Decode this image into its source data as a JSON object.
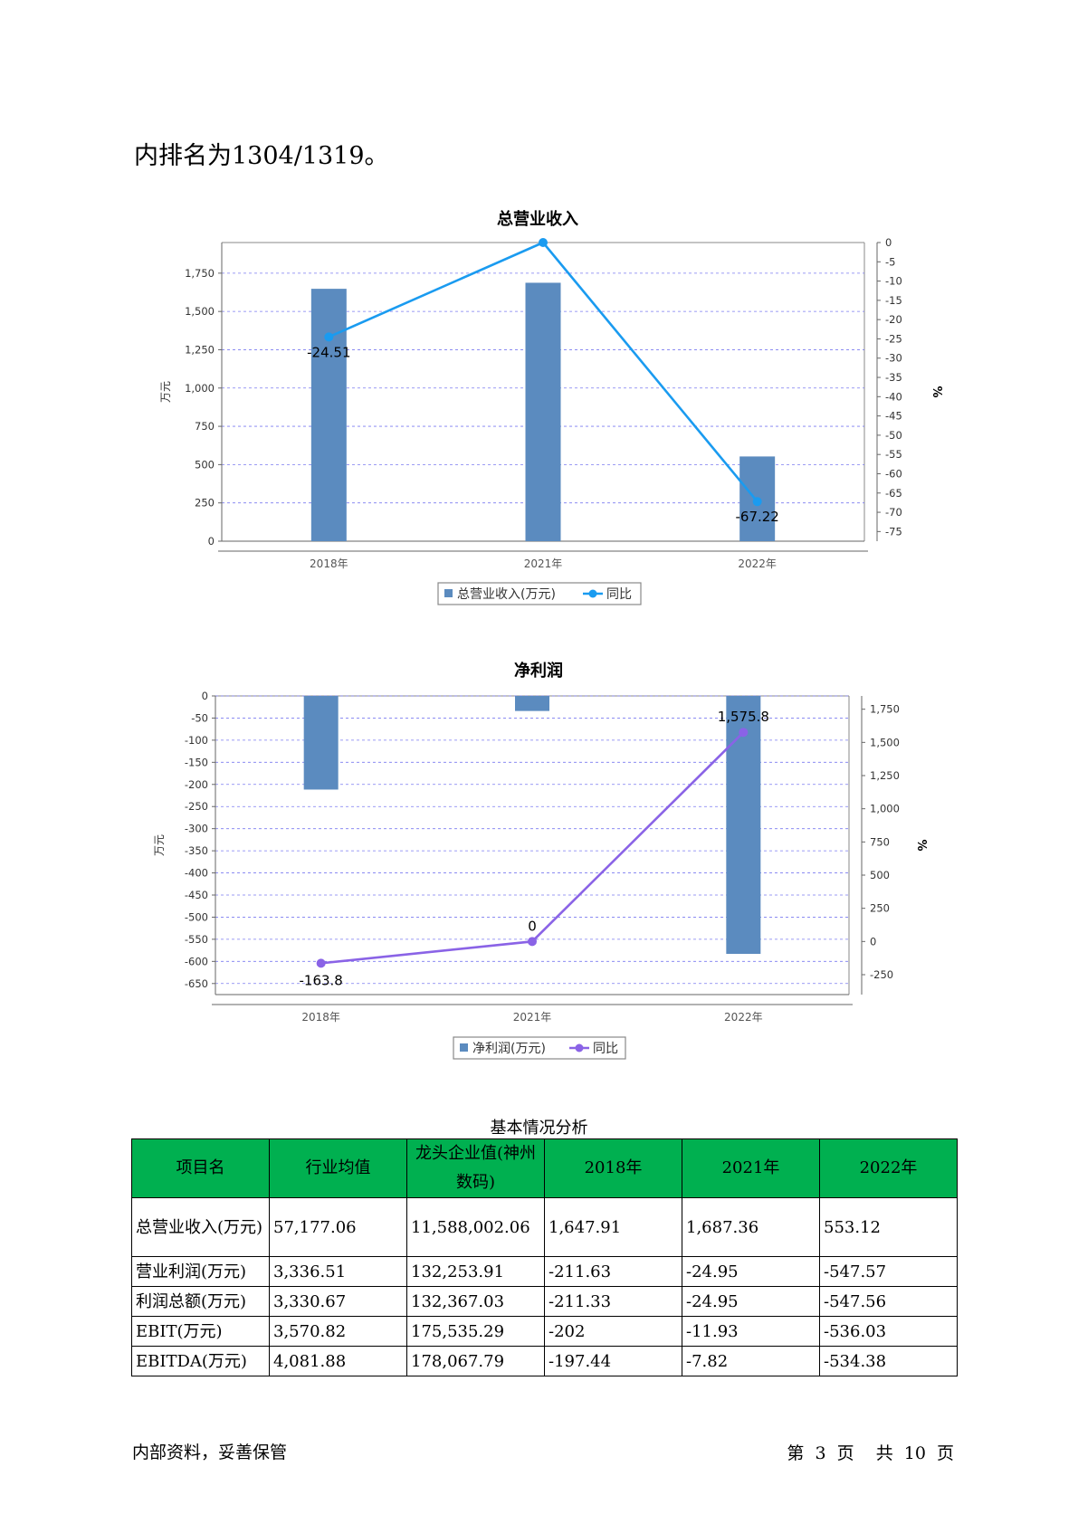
{
  "intro_text": "内排名为1304/1319。",
  "charts": {
    "revenue": {
      "title": "总营业收入",
      "ylabel_left": "万元",
      "ylabel_right": "%",
      "left_ticks": [
        "0",
        "250",
        "500",
        "750",
        "1,000",
        "1,250",
        "1,500",
        "1,750"
      ],
      "right_ticks": [
        "0",
        "-5",
        "-10",
        "-15",
        "-20",
        "-25",
        "-30",
        "-35",
        "-40",
        "-45",
        "-50",
        "-55",
        "-60",
        "-65",
        "-70",
        "-75"
      ],
      "legend_bar": "总营业收入(万元)",
      "legend_line": "同比",
      "bar_color": "#5b8bbf",
      "line_color": "#1a9bf0"
    },
    "profit": {
      "title": "净利润",
      "ylabel_left": "万元",
      "ylabel_right": "%",
      "left_ticks": [
        "0",
        "-50",
        "-100",
        "-150",
        "-200",
        "-250",
        "-300",
        "-350",
        "-400",
        "-450",
        "-500",
        "-550",
        "-600",
        "-650"
      ],
      "right_ticks": [
        "1,750",
        "1,500",
        "1,250",
        "1,000",
        "750",
        "500",
        "250",
        "0",
        "-250"
      ],
      "legend_bar": "净利润(万元)",
      "legend_line": "同比",
      "bar_color": "#5b8bbf",
      "line_color": "#8a63e6"
    }
  },
  "chart_data": [
    {
      "type": "bar",
      "title": "总营业收入",
      "categories": [
        "2018年",
        "2021年",
        "2022年"
      ],
      "series": [
        {
          "name": "总营业收入(万元)",
          "type": "bar",
          "axis": "left",
          "values": [
            1647.91,
            1687.36,
            553.12
          ]
        },
        {
          "name": "同比",
          "type": "line",
          "axis": "right",
          "values": [
            -24.51,
            0,
            -67.22
          ],
          "labels": [
            "-24.51",
            "",
            "-67.22"
          ]
        }
      ],
      "ylabel": "万元",
      "ylabel_right": "%",
      "ylim": [
        0,
        1950
      ],
      "ylim_right": [
        -77.5,
        0
      ],
      "grid": true,
      "legend": "bottom"
    },
    {
      "type": "bar",
      "title": "净利润",
      "categories": [
        "2018年",
        "2021年",
        "2022年"
      ],
      "series": [
        {
          "name": "净利润(万元)",
          "type": "bar",
          "axis": "left",
          "values": [
            -211.63,
            -34,
            -583
          ]
        },
        {
          "name": "同比",
          "type": "line",
          "axis": "right",
          "values": [
            -163.8,
            0,
            1575.8
          ],
          "labels": [
            "-163.8",
            "0",
            "1,575.8"
          ]
        }
      ],
      "ylabel": "万元",
      "ylabel_right": "%",
      "ylim": [
        -675,
        0
      ],
      "ylim_right": [
        -400,
        1850
      ],
      "grid": true,
      "legend": "bottom"
    }
  ],
  "table": {
    "caption": "基本情况分析",
    "headers": [
      "项目名",
      "行业均值",
      "龙头企业值(神州数码)",
      "2018年",
      "2021年",
      "2022年"
    ],
    "rows": [
      [
        "总营业收入(万元)",
        "57,177.06",
        "11,588,002.06",
        "1,647.91",
        "1,687.36",
        "553.12"
      ],
      [
        "营业利润(万元)",
        "3,336.51",
        "132,253.91",
        "-211.63",
        "-24.95",
        "-547.57"
      ],
      [
        "利润总额(万元)",
        "3,330.67",
        "132,367.03",
        "-211.33",
        "-24.95",
        "-547.56"
      ],
      [
        "EBIT(万元)",
        "3,570.82",
        "175,535.29",
        "-202",
        "-11.93",
        "-536.03"
      ],
      [
        "EBITDA(万元)",
        "4,081.88",
        "178,067.79",
        "-197.44",
        "-7.82",
        "-534.38"
      ]
    ]
  },
  "footer": {
    "left": "内部资料，妥善保管",
    "page_prefix": "第",
    "page_current": "3",
    "page_mid": "页",
    "total_prefix": "共",
    "page_total": "10",
    "total_suffix": "页"
  }
}
